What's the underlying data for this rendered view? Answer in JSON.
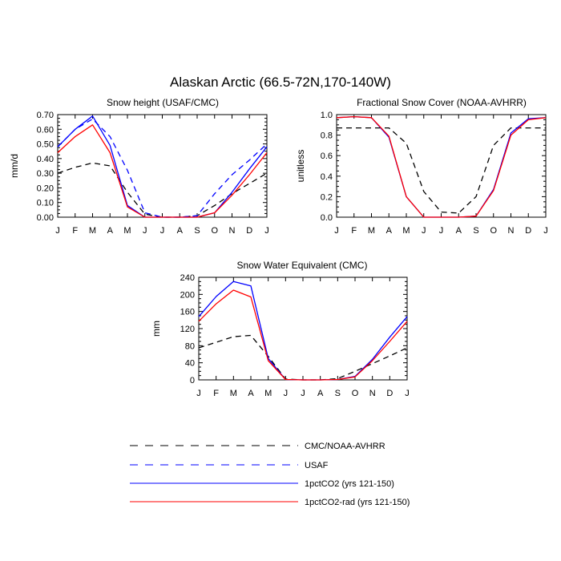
{
  "figure_title": "Alaskan Arctic (66.5-72N,170-140W)",
  "legend": [
    {
      "label": "CMC/NOAA-AVHRR",
      "color": "#000000",
      "dash": "dashed"
    },
    {
      "label": "USAF",
      "color": "#0000ff",
      "dash": "dashed"
    },
    {
      "label": "1pctCO2 (yrs 121-150)",
      "color": "#0000ff",
      "dash": "solid"
    },
    {
      "label": "1pctCO2-rad (yrs 121-150)",
      "color": "#ff0000",
      "dash": "solid"
    }
  ],
  "chart_data": [
    {
      "type": "line",
      "title": "Snow height (USAF/CMC)",
      "xlabel": "",
      "ylabel": "mm/d",
      "categories": [
        "J",
        "F",
        "M",
        "A",
        "M",
        "J",
        "J",
        "A",
        "S",
        "O",
        "N",
        "D",
        "J"
      ],
      "ylim": [
        0,
        0.7
      ],
      "yticks": [
        "0.00",
        "0.10",
        "0.20",
        "0.30",
        "0.40",
        "0.50",
        "0.60",
        "0.70"
      ],
      "series": [
        {
          "name": "CMC/NOAA-AVHRR",
          "color": "#000000",
          "dash": "dashed",
          "values": [
            0.3,
            0.34,
            0.37,
            0.35,
            0.17,
            0.02,
            0.0,
            0.0,
            0.01,
            0.08,
            0.16,
            0.23,
            0.3
          ]
        },
        {
          "name": "USAF",
          "color": "#0000ff",
          "dash": "dashed",
          "values": [
            0.48,
            0.6,
            0.67,
            0.55,
            0.32,
            0.03,
            0.0,
            0.0,
            0.01,
            0.16,
            0.29,
            0.39,
            0.5
          ]
        },
        {
          "name": "1pctCO2 (yrs 121-150)",
          "color": "#0000ff",
          "dash": "solid",
          "values": [
            0.48,
            0.6,
            0.69,
            0.49,
            0.08,
            0.0,
            0.0,
            0.0,
            0.0,
            0.03,
            0.17,
            0.33,
            0.48
          ]
        },
        {
          "name": "1pctCO2-rad (yrs 121-150)",
          "color": "#ff0000",
          "dash": "solid",
          "values": [
            0.44,
            0.55,
            0.63,
            0.44,
            0.07,
            0.0,
            0.0,
            0.0,
            0.0,
            0.03,
            0.15,
            0.29,
            0.44
          ]
        }
      ]
    },
    {
      "type": "line",
      "title": "Fractional Snow Cover (NOAA-AVHRR)",
      "xlabel": "",
      "ylabel": "unitless",
      "categories": [
        "J",
        "F",
        "M",
        "A",
        "M",
        "J",
        "J",
        "A",
        "S",
        "O",
        "N",
        "D",
        "J"
      ],
      "ylim": [
        0,
        1.0
      ],
      "yticks": [
        "0.0",
        "0.2",
        "0.4",
        "0.6",
        "0.8",
        "1.0"
      ],
      "series": [
        {
          "name": "CMC/NOAA-AVHRR",
          "color": "#000000",
          "dash": "dashed",
          "values": [
            0.87,
            0.87,
            0.87,
            0.87,
            0.72,
            0.25,
            0.05,
            0.04,
            0.2,
            0.7,
            0.87,
            0.87,
            0.87
          ]
        },
        {
          "name": "1pctCO2 (yrs 121-150)",
          "color": "#0000ff",
          "dash": "solid",
          "values": [
            0.97,
            0.98,
            0.97,
            0.78,
            0.2,
            0.0,
            0.0,
            0.0,
            0.01,
            0.27,
            0.82,
            0.96,
            0.97
          ]
        },
        {
          "name": "1pctCO2-rad (yrs 121-150)",
          "color": "#ff0000",
          "dash": "solid",
          "values": [
            0.97,
            0.98,
            0.97,
            0.79,
            0.2,
            0.0,
            0.0,
            0.0,
            0.01,
            0.26,
            0.8,
            0.95,
            0.97
          ]
        }
      ]
    },
    {
      "type": "line",
      "title": "Snow Water Equivalent (CMC)",
      "xlabel": "",
      "ylabel": "mm",
      "categories": [
        "J",
        "F",
        "M",
        "A",
        "M",
        "J",
        "J",
        "A",
        "S",
        "O",
        "N",
        "D",
        "J"
      ],
      "ylim": [
        0,
        240
      ],
      "yticks": [
        "0",
        "40",
        "80",
        "120",
        "160",
        "200",
        "240"
      ],
      "series": [
        {
          "name": "CMC/NOAA-AVHRR",
          "color": "#000000",
          "dash": "dashed",
          "values": [
            75,
            88,
            101,
            104,
            55,
            2,
            0,
            0,
            3,
            20,
            38,
            56,
            75
          ]
        },
        {
          "name": "1pctCO2 (yrs 121-150)",
          "color": "#0000ff",
          "dash": "solid",
          "values": [
            148,
            195,
            230,
            220,
            50,
            1,
            0,
            0,
            1,
            8,
            48,
            100,
            148
          ]
        },
        {
          "name": "1pctCO2-rad (yrs 121-150)",
          "color": "#ff0000",
          "dash": "solid",
          "values": [
            137,
            178,
            210,
            194,
            45,
            1,
            0,
            0,
            1,
            7,
            45,
            90,
            137
          ]
        }
      ]
    }
  ]
}
